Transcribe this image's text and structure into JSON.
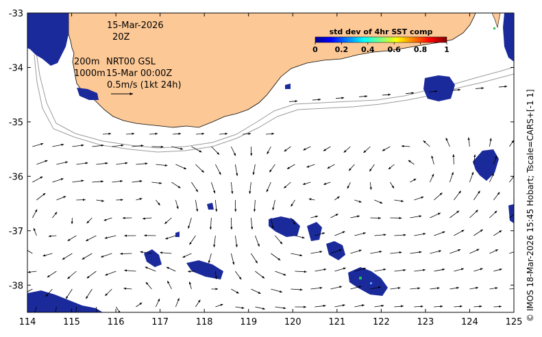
{
  "map": {
    "title_date": "15-Mar-2026",
    "title_hour": "20Z",
    "contour_shallow": "200m",
    "contour_deep": "1000m",
    "product": "NRT00 GSL",
    "product_time": "15-Mar 00:00Z",
    "vector_scale": "0.5m/s (1kt 24h)",
    "colors": {
      "land": "#fcc896",
      "ocean": "#ffffff",
      "contour": "#9a9a9a",
      "high_variability": "#1a2a9a",
      "arrow": "#000000"
    }
  },
  "colorbar": {
    "title": "std dev of 4hr SST comp",
    "ticks": [
      "0",
      "0.2",
      "0.4",
      "0.6",
      "0.8",
      "1"
    ]
  },
  "axes": {
    "x_ticks": [
      "114",
      "115",
      "116",
      "117",
      "118",
      "119",
      "120",
      "121",
      "122",
      "123",
      "124",
      "125"
    ],
    "y_ticks": [
      "-33",
      "-34",
      "-35",
      "-36",
      "-37",
      "-38"
    ],
    "x_range": [
      114,
      125
    ],
    "y_range": [
      -38.5,
      -33
    ]
  },
  "credit": "© IMOS 18-Mar-2026 15:45 Hobart; Tscale=CARS+[-1 1]"
}
